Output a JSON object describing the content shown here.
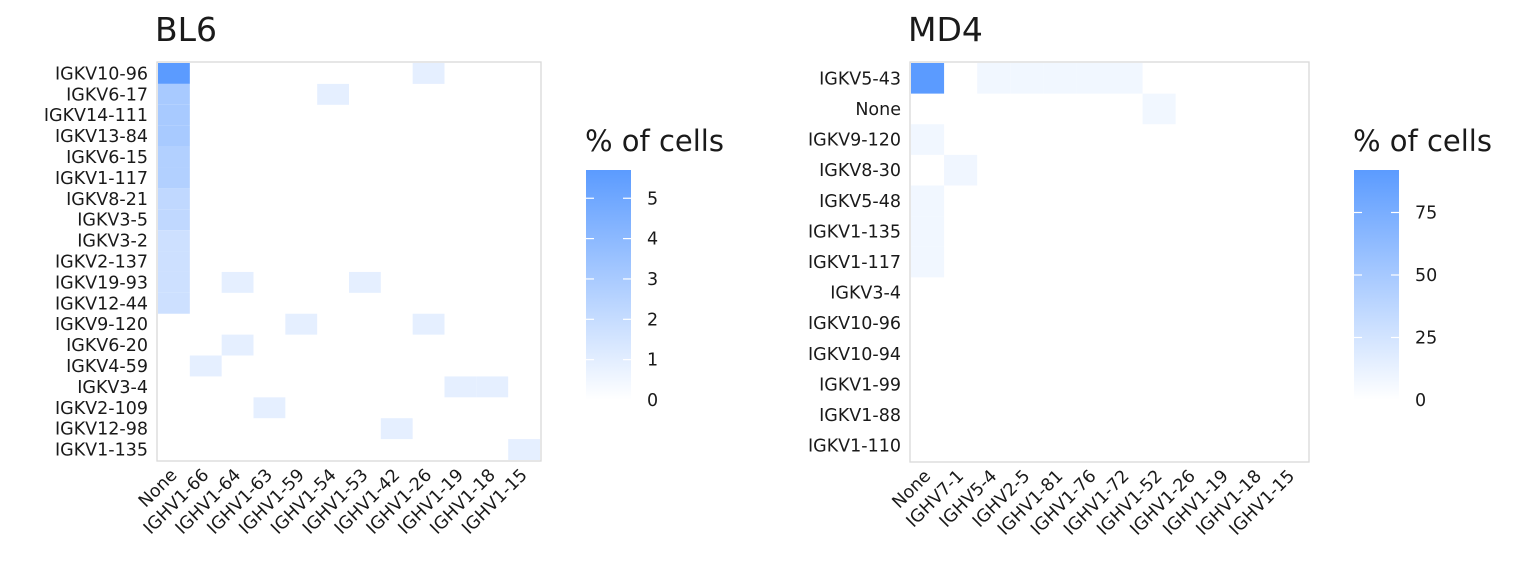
{
  "chart_data": [
    {
      "type": "heatmap",
      "title": "BL6",
      "xlabel": "",
      "ylabel": "",
      "legend": {
        "title": "% of cells",
        "ticks": [
          0,
          1,
          2,
          3,
          4,
          5
        ],
        "range": [
          0,
          5.7
        ],
        "position": "right"
      },
      "x_categories": [
        "None",
        "IGHV1-66",
        "IGHV1-64",
        "IGHV1-63",
        "IGHV1-59",
        "IGHV1-54",
        "IGHV1-53",
        "IGHV1-42",
        "IGHV1-26",
        "IGHV1-19",
        "IGHV1-18",
        "IGHV1-15"
      ],
      "y_categories": [
        "IGKV10-96",
        "IGKV6-17",
        "IGKV14-111",
        "IGKV13-84",
        "IGKV6-15",
        "IGKV1-117",
        "IGKV8-21",
        "IGKV3-5",
        "IGKV3-2",
        "IGKV2-137",
        "IGKV19-93",
        "IGKV12-44",
        "IGKV9-120",
        "IGKV6-20",
        "IGKV4-59",
        "IGKV3-4",
        "IGKV2-109",
        "IGKV12-98",
        "IGKV1-135"
      ],
      "cells": [
        {
          "x": "None",
          "y": "IGKV10-96",
          "value": 5.7
        },
        {
          "x": "IGHV1-26",
          "y": "IGKV10-96",
          "value": 0.5
        },
        {
          "x": "None",
          "y": "IGKV6-17",
          "value": 2.8
        },
        {
          "x": "IGHV1-54",
          "y": "IGKV6-17",
          "value": 0.5
        },
        {
          "x": "None",
          "y": "IGKV14-111",
          "value": 2.8
        },
        {
          "x": "None",
          "y": "IGKV13-84",
          "value": 2.8
        },
        {
          "x": "None",
          "y": "IGKV6-15",
          "value": 2.4
        },
        {
          "x": "None",
          "y": "IGKV1-117",
          "value": 2.4
        },
        {
          "x": "None",
          "y": "IGKV8-21",
          "value": 1.9
        },
        {
          "x": "None",
          "y": "IGKV3-5",
          "value": 1.9
        },
        {
          "x": "None",
          "y": "IGKV3-2",
          "value": 1.4
        },
        {
          "x": "None",
          "y": "IGKV2-137",
          "value": 1.4
        },
        {
          "x": "None",
          "y": "IGKV19-93",
          "value": 1.4
        },
        {
          "x": "IGHV1-64",
          "y": "IGKV19-93",
          "value": 0.5
        },
        {
          "x": "IGHV1-53",
          "y": "IGKV19-93",
          "value": 0.5
        },
        {
          "x": "None",
          "y": "IGKV12-44",
          "value": 1.4
        },
        {
          "x": "IGHV1-59",
          "y": "IGKV9-120",
          "value": 0.5
        },
        {
          "x": "IGHV1-26",
          "y": "IGKV9-120",
          "value": 0.5
        },
        {
          "x": "IGHV1-64",
          "y": "IGKV6-20",
          "value": 0.5
        },
        {
          "x": "IGHV1-66",
          "y": "IGKV4-59",
          "value": 0.5
        },
        {
          "x": "IGHV1-19",
          "y": "IGKV3-4",
          "value": 0.5
        },
        {
          "x": "IGHV1-18",
          "y": "IGKV3-4",
          "value": 0.5
        },
        {
          "x": "IGHV1-63",
          "y": "IGKV2-109",
          "value": 0.5
        },
        {
          "x": "IGHV1-42",
          "y": "IGKV12-98",
          "value": 0.5
        },
        {
          "x": "IGHV1-15",
          "y": "IGKV1-135",
          "value": 0.5
        }
      ],
      "colors": {
        "low": "#ffffff",
        "high": "#5b9bff"
      },
      "grid": false
    },
    {
      "type": "heatmap",
      "title": "MD4",
      "xlabel": "",
      "ylabel": "",
      "legend": {
        "title": "% of cells",
        "ticks": [
          0,
          25,
          50,
          75
        ],
        "range": [
          0,
          92
        ],
        "position": "right"
      },
      "x_categories": [
        "None",
        "IGHV7-1",
        "IGHV5-4",
        "IGHV2-5",
        "IGHV1-81",
        "IGHV1-76",
        "IGHV1-72",
        "IGHV1-52",
        "IGHV1-26",
        "IGHV1-19",
        "IGHV1-18",
        "IGHV1-15"
      ],
      "y_categories": [
        "IGKV5-43",
        "None",
        "IGKV9-120",
        "IGKV8-30",
        "IGKV5-48",
        "IGKV1-135",
        "IGKV1-117",
        "IGKV3-4",
        "IGKV10-96",
        "IGKV10-94",
        "IGKV1-99",
        "IGKV1-88",
        "IGKV1-110"
      ],
      "cells": [
        {
          "x": "None",
          "y": "IGKV5-43",
          "value": 92
        },
        {
          "x": "IGHV5-4",
          "y": "IGKV5-43",
          "value": 0.5
        },
        {
          "x": "IGHV2-5",
          "y": "IGKV5-43",
          "value": 0.5
        },
        {
          "x": "IGHV1-81",
          "y": "IGKV5-43",
          "value": 0.5
        },
        {
          "x": "IGHV1-76",
          "y": "IGKV5-43",
          "value": 0.5
        },
        {
          "x": "IGHV1-72",
          "y": "IGKV5-43",
          "value": 0.5
        },
        {
          "x": "IGHV1-52",
          "y": "None",
          "value": 0.5
        },
        {
          "x": "None",
          "y": "IGKV9-120",
          "value": 0.5
        },
        {
          "x": "IGHV7-1",
          "y": "IGKV8-30",
          "value": 1
        },
        {
          "x": "None",
          "y": "IGKV5-48",
          "value": 0.5
        },
        {
          "x": "None",
          "y": "IGKV1-135",
          "value": 0.5
        },
        {
          "x": "None",
          "y": "IGKV1-117",
          "value": 0.5
        }
      ],
      "colors": {
        "low": "#ffffff",
        "high": "#5b9bff"
      },
      "grid": false
    }
  ]
}
